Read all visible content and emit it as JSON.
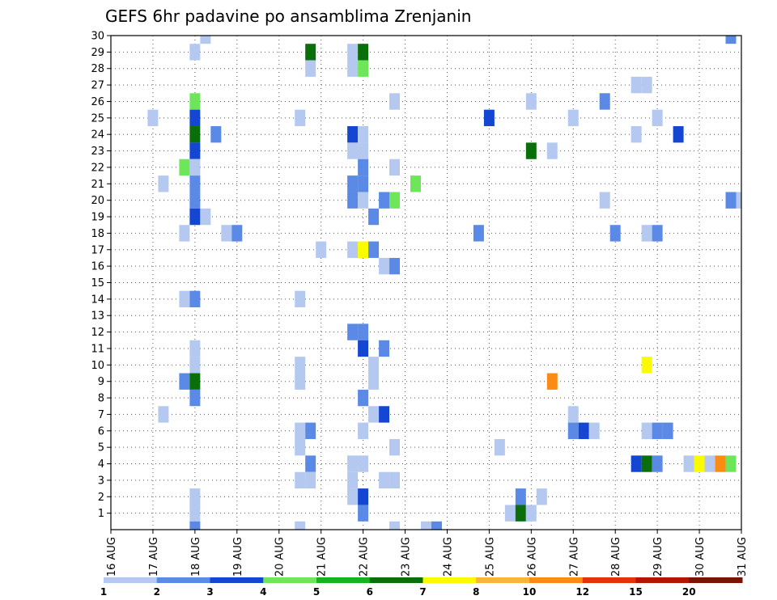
{
  "chart_data": {
    "type": "heatmap",
    "title": "GEFS 6hr padavine po ansamblima Zrenjanin",
    "xlabel": "",
    "ylabel": "",
    "x_tick_labels": [
      "16 AUG",
      "17 AUG",
      "18 AUG",
      "19 AUG",
      "20 AUG",
      "21 AUG",
      "22 AUG",
      "23 AUG",
      "24 AUG",
      "25 AUG",
      "26 AUG",
      "27 AUG",
      "28 AUG",
      "29 AUG",
      "30 AUG",
      "31 AUG"
    ],
    "x_range_days": [
      16,
      31
    ],
    "x_step_hours": 6,
    "y_tick_labels": [
      "1",
      "2",
      "3",
      "4",
      "5",
      "6",
      "7",
      "8",
      "9",
      "10",
      "11",
      "12",
      "13",
      "14",
      "15",
      "16",
      "17",
      "18",
      "19",
      "20",
      "21",
      "22",
      "23",
      "24",
      "25",
      "26",
      "27",
      "28",
      "29",
      "30"
    ],
    "y_range": [
      0,
      30
    ],
    "grid": true,
    "colorbar": {
      "labels": [
        "1",
        "2",
        "3",
        "4",
        "5",
        "6",
        "7",
        "8",
        "10",
        "12",
        "15",
        "20"
      ],
      "colors": [
        "#b4c8f0",
        "#5a8ae6",
        "#1446d2",
        "#6ee65a",
        "#14b41e",
        "#0a6e0a",
        "#fafa00",
        "#fab43c",
        "#fa8c14",
        "#e6320a",
        "#b41400",
        "#781400"
      ]
    },
    "cells": [
      {
        "member": 30,
        "day": 18.25,
        "level": 1
      },
      {
        "member": 30,
        "day": 30.75,
        "level": 2
      },
      {
        "member": 29,
        "day": 18,
        "level": 1
      },
      {
        "member": 29,
        "day": 20.75,
        "level": 6
      },
      {
        "member": 29,
        "day": 21.75,
        "level": 1
      },
      {
        "member": 29,
        "day": 22,
        "level": 6
      },
      {
        "member": 28,
        "day": 20.75,
        "level": 1
      },
      {
        "member": 28,
        "day": 21.75,
        "level": 1
      },
      {
        "member": 28,
        "day": 22,
        "level": 4
      },
      {
        "member": 27,
        "day": 28.5,
        "level": 1
      },
      {
        "member": 27,
        "day": 28.75,
        "level": 1
      },
      {
        "member": 26,
        "day": 18,
        "level": 4
      },
      {
        "member": 26,
        "day": 22.75,
        "level": 1
      },
      {
        "member": 26,
        "day": 26,
        "level": 1
      },
      {
        "member": 26,
        "day": 27.75,
        "level": 2
      },
      {
        "member": 25,
        "day": 17,
        "level": 1
      },
      {
        "member": 25,
        "day": 18,
        "level": 3
      },
      {
        "member": 25,
        "day": 20.5,
        "level": 1
      },
      {
        "member": 25,
        "day": 25,
        "level": 3
      },
      {
        "member": 25,
        "day": 27,
        "level": 1
      },
      {
        "member": 25,
        "day": 29,
        "level": 1
      },
      {
        "member": 24,
        "day": 18,
        "level": 6
      },
      {
        "member": 24,
        "day": 18.5,
        "level": 2
      },
      {
        "member": 24,
        "day": 21.75,
        "level": 3
      },
      {
        "member": 24,
        "day": 22,
        "level": 1
      },
      {
        "member": 24,
        "day": 28.5,
        "level": 1
      },
      {
        "member": 24,
        "day": 29.5,
        "level": 3
      },
      {
        "member": 23,
        "day": 18,
        "level": 3
      },
      {
        "member": 23,
        "day": 21.75,
        "level": 1
      },
      {
        "member": 23,
        "day": 22,
        "level": 1
      },
      {
        "member": 23,
        "day": 26,
        "level": 6
      },
      {
        "member": 23,
        "day": 26.5,
        "level": 1
      },
      {
        "member": 22,
        "day": 17.75,
        "level": 4
      },
      {
        "member": 22,
        "day": 18,
        "level": 1
      },
      {
        "member": 22,
        "day": 22,
        "level": 2
      },
      {
        "member": 22,
        "day": 22.75,
        "level": 1
      },
      {
        "member": 21,
        "day": 17.25,
        "level": 1
      },
      {
        "member": 21,
        "day": 18,
        "level": 2
      },
      {
        "member": 21,
        "day": 21.75,
        "level": 2
      },
      {
        "member": 21,
        "day": 22,
        "level": 2
      },
      {
        "member": 21,
        "day": 23.25,
        "level": 4
      },
      {
        "member": 20,
        "day": 18,
        "level": 2
      },
      {
        "member": 20,
        "day": 21.75,
        "level": 2
      },
      {
        "member": 20,
        "day": 22,
        "level": 1
      },
      {
        "member": 20,
        "day": 22.5,
        "level": 2
      },
      {
        "member": 20,
        "day": 22.75,
        "level": 4
      },
      {
        "member": 20,
        "day": 27.75,
        "level": 1
      },
      {
        "member": 20,
        "day": 30.75,
        "level": 2
      },
      {
        "member": 20,
        "day": 31,
        "level": 1
      },
      {
        "member": 19,
        "day": 18,
        "level": 3
      },
      {
        "member": 19,
        "day": 18.25,
        "level": 1
      },
      {
        "member": 19,
        "day": 22.25,
        "level": 2
      },
      {
        "member": 18,
        "day": 17.75,
        "level": 1
      },
      {
        "member": 18,
        "day": 18.75,
        "level": 1
      },
      {
        "member": 18,
        "day": 19,
        "level": 2
      },
      {
        "member": 18,
        "day": 24.75,
        "level": 2
      },
      {
        "member": 18,
        "day": 28,
        "level": 2
      },
      {
        "member": 18,
        "day": 28.75,
        "level": 1
      },
      {
        "member": 18,
        "day": 29,
        "level": 2
      },
      {
        "member": 17,
        "day": 21,
        "level": 1
      },
      {
        "member": 17,
        "day": 21.75,
        "level": 1
      },
      {
        "member": 17,
        "day": 22,
        "level": 7
      },
      {
        "member": 17,
        "day": 22.25,
        "level": 2
      },
      {
        "member": 16,
        "day": 22.5,
        "level": 1
      },
      {
        "member": 16,
        "day": 22.75,
        "level": 2
      },
      {
        "member": 14,
        "day": 17.75,
        "level": 1
      },
      {
        "member": 14,
        "day": 18,
        "level": 2
      },
      {
        "member": 14,
        "day": 20.5,
        "level": 1
      },
      {
        "member": 12,
        "day": 21.75,
        "level": 2
      },
      {
        "member": 12,
        "day": 22,
        "level": 2
      },
      {
        "member": 11,
        "day": 18,
        "level": 1
      },
      {
        "member": 11,
        "day": 22,
        "level": 3
      },
      {
        "member": 11,
        "day": 22.5,
        "level": 2
      },
      {
        "member": 10,
        "day": 18,
        "level": 1
      },
      {
        "member": 10,
        "day": 20.5,
        "level": 1
      },
      {
        "member": 10,
        "day": 22.25,
        "level": 1
      },
      {
        "member": 10,
        "day": 28.75,
        "level": 7
      },
      {
        "member": 9,
        "day": 17.75,
        "level": 2
      },
      {
        "member": 9,
        "day": 18,
        "level": 6
      },
      {
        "member": 9,
        "day": 20.5,
        "level": 1
      },
      {
        "member": 9,
        "day": 22.25,
        "level": 1
      },
      {
        "member": 9,
        "day": 26.5,
        "level": 10
      },
      {
        "member": 8,
        "day": 18,
        "level": 2
      },
      {
        "member": 8,
        "day": 22,
        "level": 2
      },
      {
        "member": 7,
        "day": 17.25,
        "level": 1
      },
      {
        "member": 7,
        "day": 22.25,
        "level": 1
      },
      {
        "member": 7,
        "day": 22.5,
        "level": 3
      },
      {
        "member": 7,
        "day": 27,
        "level": 1
      },
      {
        "member": 6,
        "day": 20.5,
        "level": 1
      },
      {
        "member": 6,
        "day": 20.75,
        "level": 2
      },
      {
        "member": 6,
        "day": 22,
        "level": 1
      },
      {
        "member": 6,
        "day": 27,
        "level": 2
      },
      {
        "member": 6,
        "day": 27.25,
        "level": 3
      },
      {
        "member": 6,
        "day": 27.5,
        "level": 1
      },
      {
        "member": 6,
        "day": 28.75,
        "level": 1
      },
      {
        "member": 6,
        "day": 29,
        "level": 2
      },
      {
        "member": 6,
        "day": 29.25,
        "level": 2
      },
      {
        "member": 5,
        "day": 20.5,
        "level": 1
      },
      {
        "member": 5,
        "day": 22.75,
        "level": 1
      },
      {
        "member": 5,
        "day": 25.25,
        "level": 1
      },
      {
        "member": 4,
        "day": 20.75,
        "level": 2
      },
      {
        "member": 4,
        "day": 21.75,
        "level": 1
      },
      {
        "member": 4,
        "day": 22,
        "level": 1
      },
      {
        "member": 4,
        "day": 28.5,
        "level": 3
      },
      {
        "member": 4,
        "day": 28.75,
        "level": 6
      },
      {
        "member": 4,
        "day": 29,
        "level": 2
      },
      {
        "member": 4,
        "day": 29.75,
        "level": 1
      },
      {
        "member": 4,
        "day": 30,
        "level": 7
      },
      {
        "member": 4,
        "day": 30.25,
        "level": 1
      },
      {
        "member": 4,
        "day": 30.5,
        "level": 10
      },
      {
        "member": 4,
        "day": 30.75,
        "level": 4
      },
      {
        "member": 3,
        "day": 20.5,
        "level": 1
      },
      {
        "member": 3,
        "day": 20.75,
        "level": 1
      },
      {
        "member": 3,
        "day": 21.75,
        "level": 1
      },
      {
        "member": 3,
        "day": 22.5,
        "level": 1
      },
      {
        "member": 3,
        "day": 22.75,
        "level": 1
      },
      {
        "member": 2,
        "day": 18,
        "level": 1
      },
      {
        "member": 2,
        "day": 21.75,
        "level": 1
      },
      {
        "member": 2,
        "day": 22,
        "level": 3
      },
      {
        "member": 2,
        "day": 25.75,
        "level": 2
      },
      {
        "member": 2,
        "day": 26.25,
        "level": 1
      },
      {
        "member": 1,
        "day": 18,
        "level": 1
      },
      {
        "member": 1,
        "day": 22,
        "level": 2
      },
      {
        "member": 1,
        "day": 25.5,
        "level": 1
      },
      {
        "member": 1,
        "day": 25.75,
        "level": 6
      },
      {
        "member": 1,
        "day": 26,
        "level": 1
      },
      {
        "member": 0,
        "day": 18,
        "level": 2
      },
      {
        "member": 0,
        "day": 20.5,
        "level": 1
      },
      {
        "member": 0,
        "day": 22.75,
        "level": 1
      },
      {
        "member": 0,
        "day": 23.5,
        "level": 1
      },
      {
        "member": 0,
        "day": 23.75,
        "level": 2
      }
    ]
  }
}
